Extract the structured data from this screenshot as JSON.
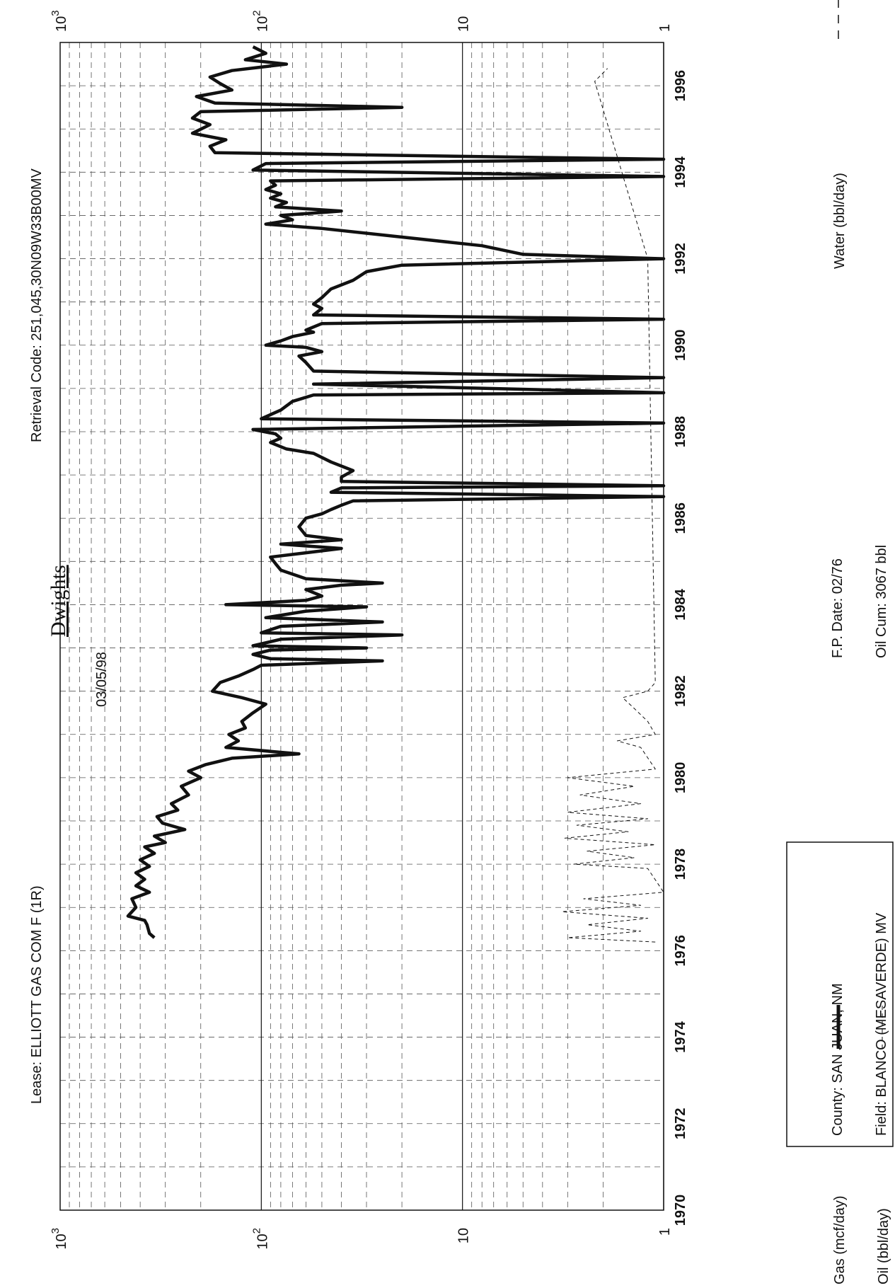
{
  "header": {
    "brand": "Dwights",
    "date": "03/05/98",
    "lease": "Lease: ELLIOTT GAS COM F  (1R)",
    "retrieval_code": "Retrieval Code: 251,045,30N09W33B00MV"
  },
  "info_box": {
    "county": "County: SAN JUAN, NM",
    "field": "Field: BLANCO (MESAVERDE) MV",
    "fp_date": "F.P. Date: 02/76",
    "oil_cum": "Oil Cum: 3067 bbl"
  },
  "legend": {
    "gas": "Gas (mcf/day)",
    "oil": "Oil (bbl/day)",
    "water": "Water (bbl/day)"
  },
  "colors": {
    "series": "#111111",
    "grid": "#555555"
  },
  "chart_data": {
    "type": "line",
    "orientation": "rotated-90-clockwise",
    "x_axis": {
      "scale": "linear",
      "range": [
        1970,
        1997
      ],
      "tick_labels": [
        "1970",
        "1972",
        "1974",
        "1976",
        "1978",
        "1980",
        "1982",
        "1984",
        "1986",
        "1988",
        "1990",
        "1992",
        "1994",
        "1996"
      ]
    },
    "y_axis": {
      "scale": "log",
      "range": [
        1,
        1000
      ],
      "left_tick_labels": [
        {
          "value": 1000,
          "base": "10",
          "exp": "3"
        },
        {
          "value": 100,
          "base": "10",
          "exp": "2"
        },
        {
          "value": 10,
          "base": "10",
          "exp": ""
        },
        {
          "value": 1,
          "base": "1",
          "exp": ""
        }
      ],
      "right_tick_labels": [
        {
          "value": 1000,
          "base": "10",
          "exp": "3"
        },
        {
          "value": 100,
          "base": "10",
          "exp": "2"
        },
        {
          "value": 10,
          "base": "10",
          "exp": ""
        },
        {
          "value": 1,
          "base": "1",
          "exp": ""
        }
      ]
    },
    "grid": true,
    "series": [
      {
        "name": "Gas (mcf/day)",
        "style": "solid-thick",
        "points": [
          [
            1976.3,
            340
          ],
          [
            1976.4,
            360
          ],
          [
            1976.6,
            370
          ],
          [
            1976.7,
            380
          ],
          [
            1976.8,
            460
          ],
          [
            1977.0,
            420
          ],
          [
            1977.2,
            440
          ],
          [
            1977.35,
            360
          ],
          [
            1977.5,
            420
          ],
          [
            1977.65,
            380
          ],
          [
            1977.8,
            420
          ],
          [
            1977.95,
            360
          ],
          [
            1978.1,
            400
          ],
          [
            1978.25,
            340
          ],
          [
            1978.4,
            380
          ],
          [
            1978.5,
            300
          ],
          [
            1978.65,
            340
          ],
          [
            1978.8,
            240
          ],
          [
            1978.95,
            310
          ],
          [
            1979.1,
            330
          ],
          [
            1979.25,
            260
          ],
          [
            1979.4,
            280
          ],
          [
            1979.6,
            230
          ],
          [
            1979.8,
            250
          ],
          [
            1980.0,
            200
          ],
          [
            1980.15,
            230
          ],
          [
            1980.3,
            190
          ],
          [
            1980.45,
            140
          ],
          [
            1980.55,
            65
          ],
          [
            1980.7,
            150
          ],
          [
            1980.85,
            130
          ],
          [
            1981.0,
            145
          ],
          [
            1981.15,
            120
          ],
          [
            1981.3,
            125
          ],
          [
            1981.5,
            110
          ],
          [
            1981.7,
            95
          ],
          [
            1981.85,
            125
          ],
          [
            1982.0,
            175
          ],
          [
            1982.2,
            160
          ],
          [
            1982.35,
            130
          ],
          [
            1982.5,
            110
          ],
          [
            1982.6,
            100
          ],
          [
            1982.65,
            50
          ],
          [
            1982.7,
            25
          ],
          [
            1982.75,
            90
          ],
          [
            1982.85,
            110
          ],
          [
            1982.95,
            90
          ],
          [
            1983.0,
            30
          ],
          [
            1983.05,
            110
          ],
          [
            1983.2,
            80
          ],
          [
            1983.3,
            20
          ],
          [
            1983.35,
            100
          ],
          [
            1983.5,
            80
          ],
          [
            1983.6,
            25
          ],
          [
            1983.7,
            95
          ],
          [
            1983.85,
            60
          ],
          [
            1983.95,
            30
          ],
          [
            1984.0,
            150
          ],
          [
            1984.1,
            60
          ],
          [
            1984.2,
            50
          ],
          [
            1984.35,
            60
          ],
          [
            1984.45,
            40
          ],
          [
            1984.5,
            25
          ],
          [
            1984.6,
            60
          ],
          [
            1984.8,
            80
          ],
          [
            1984.95,
            85
          ],
          [
            1985.1,
            90
          ],
          [
            1985.2,
            60
          ],
          [
            1985.3,
            40
          ],
          [
            1985.4,
            80
          ],
          [
            1985.5,
            40
          ],
          [
            1985.6,
            60
          ],
          [
            1985.8,
            65
          ],
          [
            1986.0,
            60
          ],
          [
            1986.1,
            50
          ],
          [
            1986.2,
            45
          ],
          [
            1986.3,
            40
          ],
          [
            1986.4,
            35
          ],
          [
            1986.5,
            1
          ],
          [
            1986.6,
            45
          ],
          [
            1986.7,
            40
          ],
          [
            1986.75,
            1
          ],
          [
            1986.85,
            40
          ],
          [
            1986.95,
            40
          ],
          [
            1987.1,
            35
          ],
          [
            1987.3,
            45
          ],
          [
            1987.5,
            55
          ],
          [
            1987.6,
            75
          ],
          [
            1987.75,
            90
          ],
          [
            1987.85,
            80
          ],
          [
            1987.95,
            85
          ],
          [
            1988.05,
            110
          ],
          [
            1988.2,
            1
          ],
          [
            1988.3,
            100
          ],
          [
            1988.5,
            80
          ],
          [
            1988.7,
            70
          ],
          [
            1988.85,
            55
          ],
          [
            1988.9,
            1
          ],
          [
            1989.1,
            55
          ],
          [
            1989.25,
            1
          ],
          [
            1989.4,
            55
          ],
          [
            1989.6,
            60
          ],
          [
            1989.75,
            65
          ],
          [
            1989.85,
            50
          ],
          [
            1989.95,
            60
          ],
          [
            1990.0,
            95
          ],
          [
            1990.1,
            80
          ],
          [
            1990.2,
            70
          ],
          [
            1990.3,
            55
          ],
          [
            1990.35,
            60
          ],
          [
            1990.5,
            50
          ],
          [
            1990.6,
            1
          ],
          [
            1990.7,
            55
          ],
          [
            1990.85,
            50
          ],
          [
            1990.95,
            55
          ],
          [
            1991.1,
            50
          ],
          [
            1991.3,
            45
          ],
          [
            1991.5,
            35
          ],
          [
            1991.7,
            30
          ],
          [
            1991.85,
            20
          ],
          [
            1992.0,
            1
          ],
          [
            1992.1,
            5
          ],
          [
            1992.3,
            8
          ],
          [
            1992.5,
            20
          ],
          [
            1992.7,
            50
          ],
          [
            1992.8,
            95
          ],
          [
            1992.9,
            70
          ],
          [
            1993.0,
            80
          ],
          [
            1993.1,
            40
          ],
          [
            1993.2,
            85
          ],
          [
            1993.3,
            75
          ],
          [
            1993.4,
            90
          ],
          [
            1993.5,
            80
          ],
          [
            1993.6,
            95
          ],
          [
            1993.7,
            85
          ],
          [
            1993.8,
            90
          ],
          [
            1993.9,
            1
          ],
          [
            1994.05,
            110
          ],
          [
            1994.2,
            95
          ],
          [
            1994.3,
            1
          ],
          [
            1994.45,
            170
          ],
          [
            1994.6,
            180
          ],
          [
            1994.75,
            150
          ],
          [
            1994.9,
            220
          ],
          [
            1995.1,
            180
          ],
          [
            1995.25,
            220
          ],
          [
            1995.4,
            200
          ],
          [
            1995.5,
            20
          ],
          [
            1995.6,
            170
          ],
          [
            1995.75,
            210
          ],
          [
            1995.9,
            140
          ],
          [
            1996.05,
            160
          ],
          [
            1996.2,
            180
          ],
          [
            1996.35,
            140
          ],
          [
            1996.5,
            75
          ],
          [
            1996.6,
            120
          ],
          [
            1996.75,
            95
          ],
          [
            1996.9,
            110
          ]
        ]
      },
      {
        "name": "Oil (bbl/day)",
        "style": "dashed-thin",
        "points": [
          [
            1976.2,
            1.1
          ],
          [
            1976.3,
            3.0
          ],
          [
            1976.45,
            1.3
          ],
          [
            1976.6,
            2.4
          ],
          [
            1976.75,
            1.2
          ],
          [
            1976.9,
            3.2
          ],
          [
            1977.05,
            1.3
          ],
          [
            1977.2,
            2.5
          ],
          [
            1977.35,
            1.0
          ],
          [
            1977.9,
            1.2
          ],
          [
            1978.0,
            2.8
          ],
          [
            1978.15,
            1.4
          ],
          [
            1978.3,
            2.4
          ],
          [
            1978.45,
            1.1
          ],
          [
            1978.6,
            3.1
          ],
          [
            1978.75,
            1.5
          ],
          [
            1978.9,
            2.7
          ],
          [
            1979.05,
            1.2
          ],
          [
            1979.2,
            3.0
          ],
          [
            1979.4,
            1.3
          ],
          [
            1979.6,
            2.6
          ],
          [
            1979.8,
            1.4
          ],
          [
            1980.0,
            3.0
          ],
          [
            1980.2,
            1.1
          ],
          [
            1980.7,
            1.3
          ],
          [
            1980.85,
            1.7
          ],
          [
            1981.0,
            1.1
          ],
          [
            1981.3,
            1.2
          ],
          [
            1981.6,
            1.4
          ],
          [
            1981.85,
            1.6
          ],
          [
            1982.0,
            1.2
          ],
          [
            1982.2,
            1.1
          ],
          [
            1992.0,
            1.2
          ],
          [
            1996.1,
            2.2
          ],
          [
            1996.4,
            1.9
          ]
        ]
      }
    ]
  }
}
